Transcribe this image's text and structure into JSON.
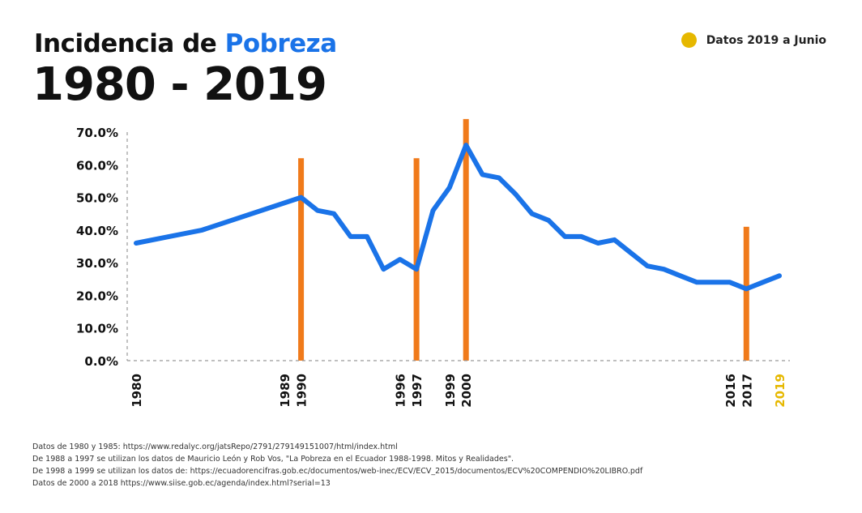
{
  "title_prefix": "Incidencia de ",
  "title_accent": "Pobreza",
  "subtitle": "1980 - 2019",
  "legend_label": "Datos 2019 a Junio",
  "colors": {
    "line": "#1a73e8",
    "marker": "#f07a1a",
    "highlight": "#e6b800",
    "text": "#111111"
  },
  "chart_data": {
    "type": "line",
    "title": "Incidencia de Pobreza 1980 - 2019",
    "ylim": [
      0,
      70
    ],
    "yticks": [
      "0.0%",
      "10.0%",
      "20.0%",
      "30.0%",
      "40.0%",
      "50.0%",
      "60.0%",
      "70.0%"
    ],
    "xlim": [
      1980,
      2019
    ],
    "xticks": [
      {
        "label": "1980",
        "year": 1980
      },
      {
        "label": "1989",
        "year": 1989
      },
      {
        "label": "1990",
        "year": 1990
      },
      {
        "label": "1996",
        "year": 1996
      },
      {
        "label": "1997",
        "year": 1997
      },
      {
        "label": "1999",
        "year": 1999
      },
      {
        "label": "2000",
        "year": 2000
      },
      {
        "label": "2016",
        "year": 2016
      },
      {
        "label": "2017",
        "year": 2017
      },
      {
        "label": "2019",
        "year": 2019,
        "highlight": true
      }
    ],
    "vertical_markers": [
      1990,
      1997,
      2000,
      2017
    ],
    "series": [
      {
        "points": [
          [
            1980,
            36
          ],
          [
            1982,
            38
          ],
          [
            1984,
            40
          ],
          [
            1990,
            50
          ],
          [
            1991,
            46
          ],
          [
            1992,
            45
          ],
          [
            1993,
            38
          ],
          [
            1994,
            38
          ],
          [
            1995,
            28
          ],
          [
            1996,
            31
          ],
          [
            1997,
            28
          ],
          [
            1998,
            46
          ],
          [
            1999,
            53
          ],
          [
            2000,
            66
          ],
          [
            2001,
            57
          ],
          [
            2002,
            56
          ],
          [
            2003,
            51
          ],
          [
            2004,
            45
          ],
          [
            2005,
            43
          ],
          [
            2006,
            38
          ],
          [
            2007,
            38
          ],
          [
            2008,
            36
          ],
          [
            2009,
            37
          ],
          [
            2010,
            33
          ],
          [
            2011,
            29
          ],
          [
            2012,
            28
          ],
          [
            2013,
            26
          ],
          [
            2014,
            24
          ],
          [
            2015,
            24
          ],
          [
            2016,
            24
          ],
          [
            2017,
            22
          ],
          [
            2018,
            24
          ],
          [
            2019,
            26
          ]
        ]
      }
    ],
    "grid": false
  },
  "notes": [
    "Datos de 1980 y 1985: https://www.redalyc.org/jatsRepo/2791/279149151007/html/index.html",
    "De 1988 a 1997 se utilizan los datos de Mauricio León y Rob Vos, \"La Pobreza en el Ecuador 1988-1998. Mitos y Realidades\".",
    "De 1998 a 1999 se utilizan los datos de: https://ecuadorencifras.gob.ec/documentos/web-inec/ECV/ECV_2015/documentos/ECV%20COMPENDIO%20LIBRO.pdf",
    "Datos de 2000 a 2018 https://www.siise.gob.ec/agenda/index.html?serial=13"
  ]
}
